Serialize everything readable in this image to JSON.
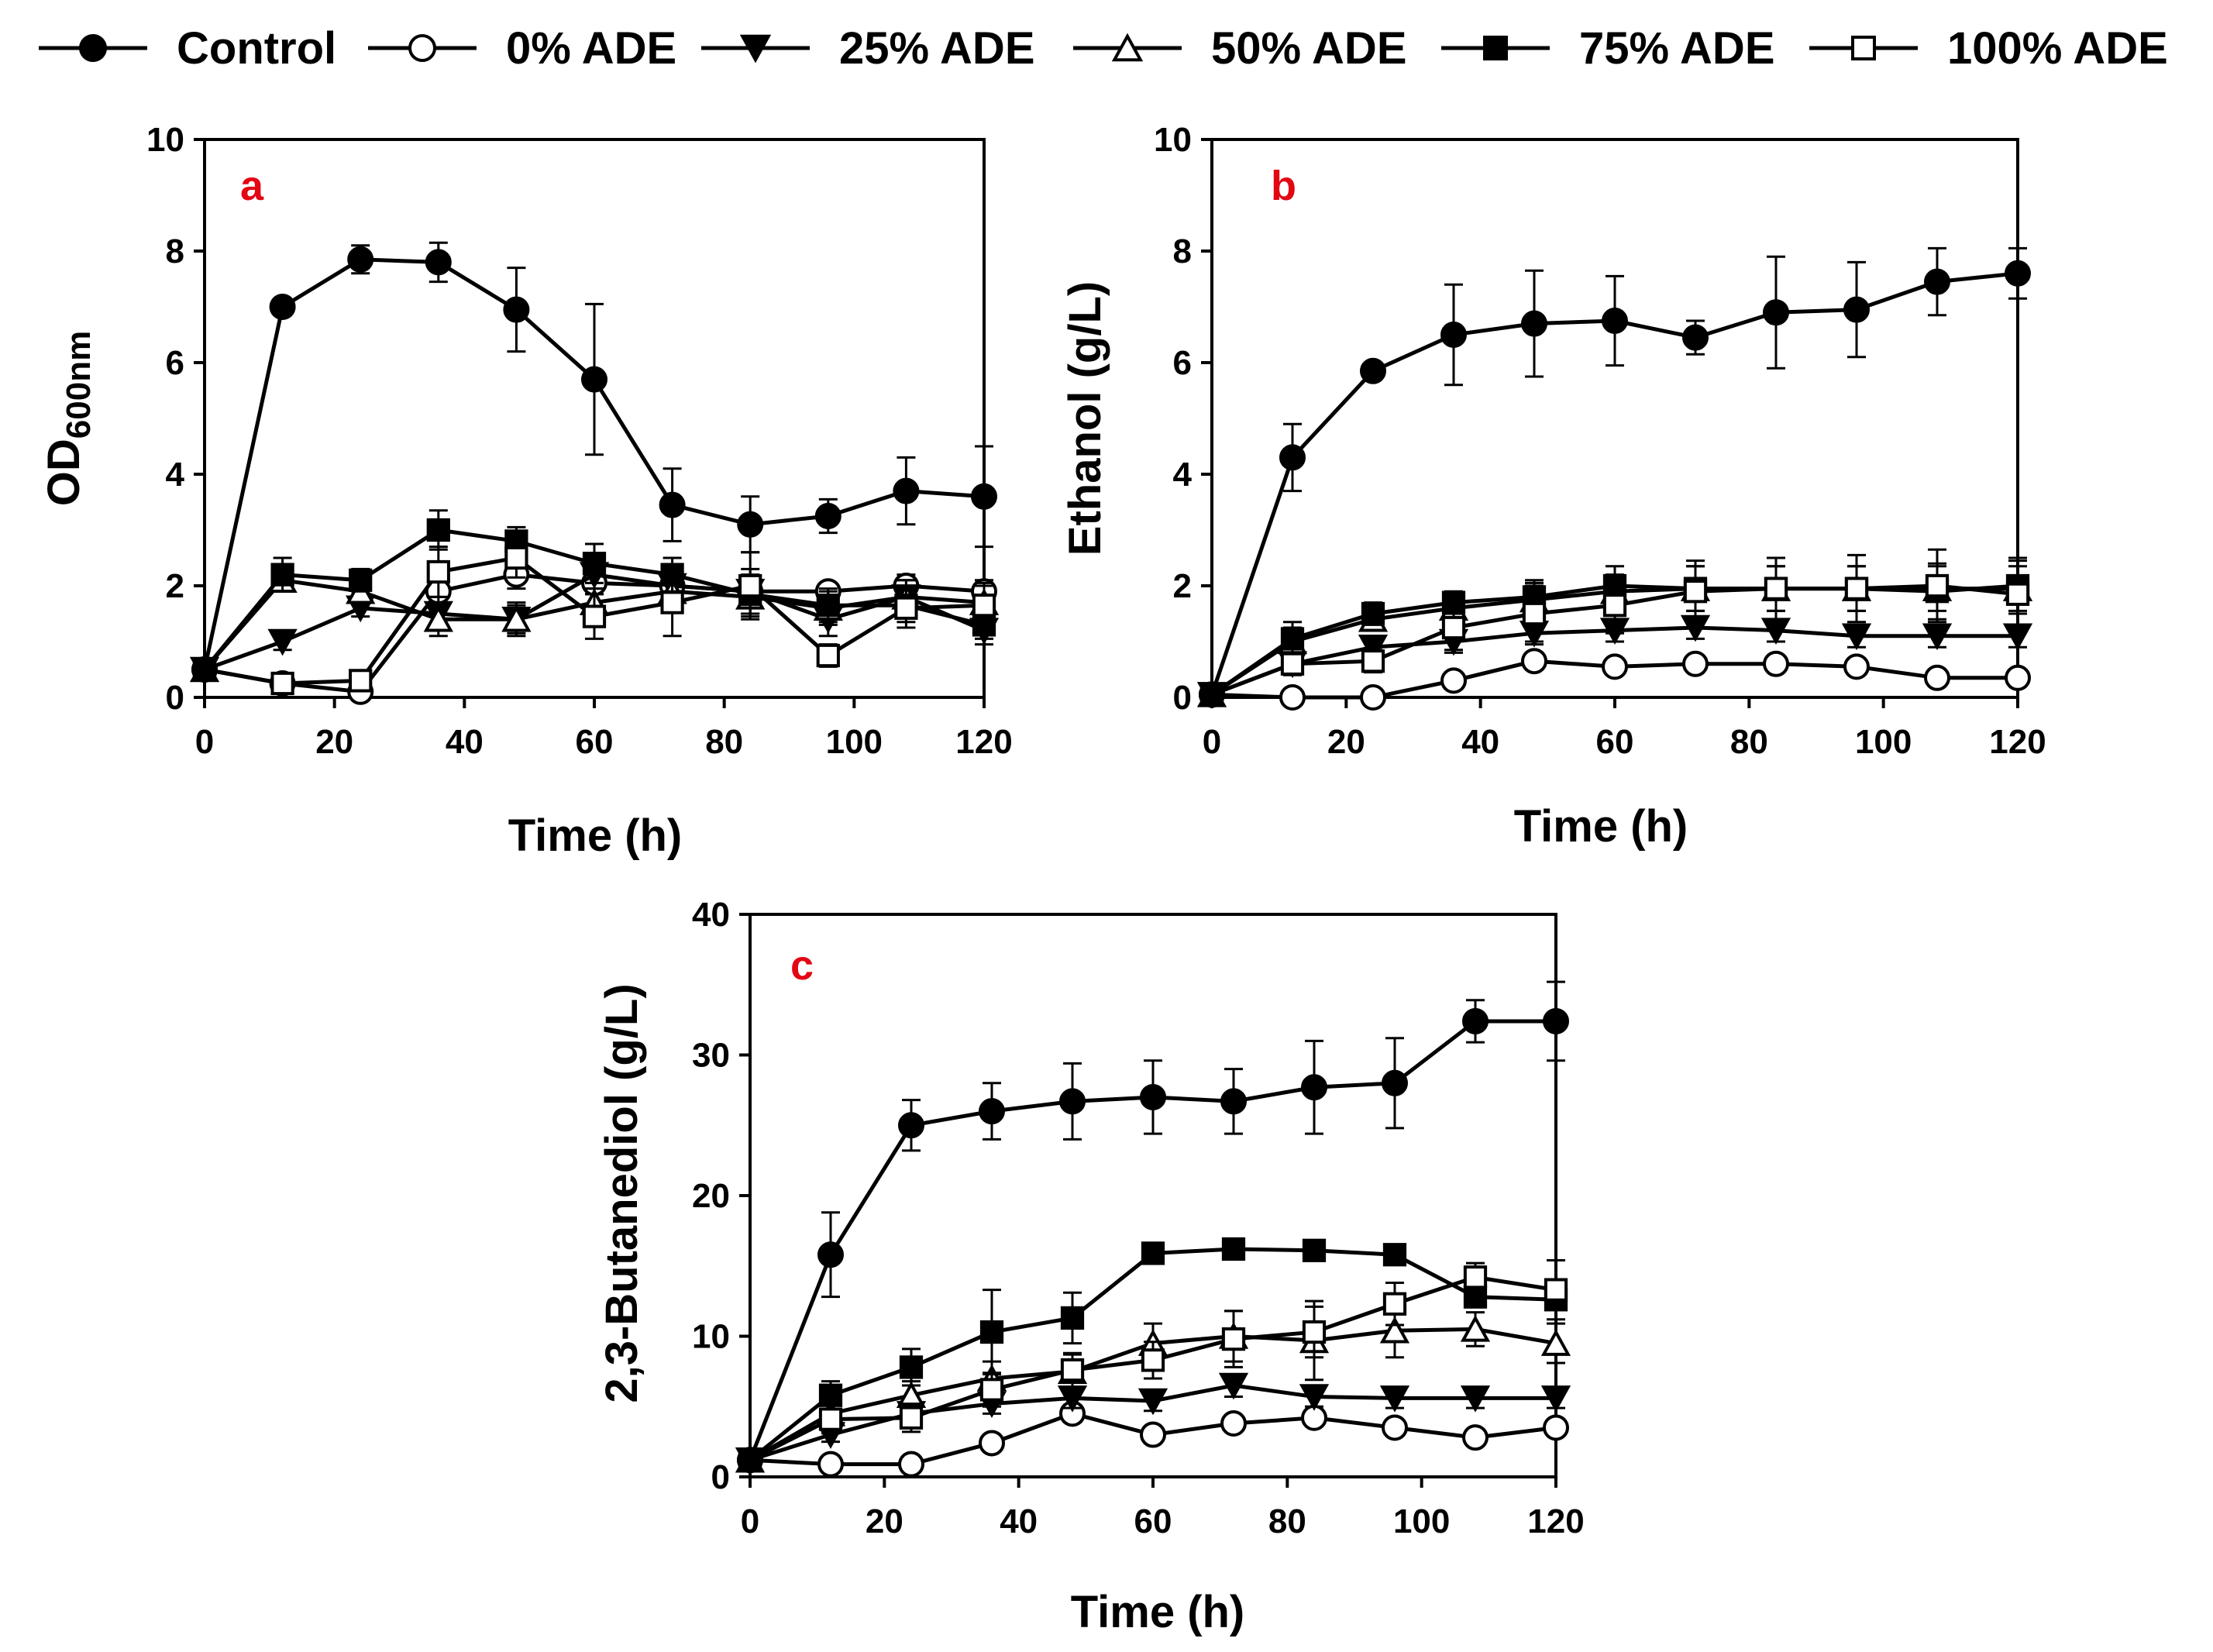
{
  "colors": {
    "axis": "#000000",
    "panel_letter": "#e30613",
    "background": "#ffffff"
  },
  "legend": {
    "items": [
      {
        "label": "Control",
        "marker": "circle-filled"
      },
      {
        "label": "0% ADE",
        "marker": "circle-open"
      },
      {
        "label": "25% ADE",
        "marker": "triangle-down-filled"
      },
      {
        "label": "50% ADE",
        "marker": "triangle-up-open"
      },
      {
        "label": "75% ADE",
        "marker": "square-filled"
      },
      {
        "label": "100% ADE",
        "marker": "square-open"
      }
    ]
  },
  "chart_data": [
    {
      "type": "line",
      "panel": "a",
      "xlabel": "Time (h)",
      "ylabel_main": "OD",
      "ylabel_sub": "600nm",
      "xlim": [
        0,
        120
      ],
      "ylim": [
        0,
        10
      ],
      "xticks": [
        0,
        20,
        40,
        60,
        80,
        100,
        120
      ],
      "yticks": [
        0,
        2,
        4,
        6,
        8,
        10
      ],
      "x": [
        0,
        12,
        24,
        36,
        48,
        60,
        72,
        84,
        96,
        108,
        120
      ],
      "series": [
        {
          "name": "Control",
          "marker": "circle-filled",
          "values": [
            0.5,
            7.0,
            7.85,
            7.8,
            6.95,
            5.7,
            3.45,
            3.1,
            3.25,
            3.7,
            3.6
          ],
          "errors": [
            0,
            0.15,
            0.25,
            0.35,
            0.75,
            1.35,
            0.65,
            0.5,
            0.3,
            0.6,
            0.9
          ]
        },
        {
          "name": "0% ADE",
          "marker": "circle-open",
          "values": [
            0.5,
            0.25,
            0.1,
            1.9,
            2.2,
            2.05,
            2.0,
            1.9,
            1.9,
            2.0,
            1.9
          ],
          "errors": [
            0,
            0,
            0,
            0.3,
            0.25,
            0.2,
            0.2,
            0.2,
            0.15,
            0.2,
            0.2
          ]
        },
        {
          "name": "25% ADE",
          "marker": "triangle-down-filled",
          "values": [
            0.5,
            1.0,
            1.6,
            1.5,
            1.4,
            2.2,
            2.0,
            1.9,
            1.4,
            1.8,
            1.2
          ],
          "errors": [
            0,
            0.15,
            0.15,
            0.3,
            0.25,
            0.25,
            0.2,
            0.4,
            0.3,
            0.3,
            0.25
          ]
        },
        {
          "name": "50% ADE",
          "marker": "triangle-up-open",
          "values": [
            0.5,
            2.1,
            1.9,
            1.4,
            1.4,
            1.7,
            1.9,
            1.8,
            1.6,
            1.8,
            1.7
          ],
          "errors": [
            0,
            0.2,
            0.2,
            0.3,
            0.3,
            0.25,
            0.25,
            0.35,
            0.3,
            0.3,
            0.3
          ]
        },
        {
          "name": "75% ADE",
          "marker": "square-filled",
          "values": [
            0.5,
            2.2,
            2.1,
            3.0,
            2.8,
            2.4,
            2.2,
            1.85,
            1.65,
            1.65,
            1.3
          ],
          "errors": [
            0,
            0.3,
            0.2,
            0.35,
            0.25,
            0.35,
            0.3,
            0.35,
            0.3,
            0.3,
            0.25
          ]
        },
        {
          "name": "100% ADE",
          "marker": "square-open",
          "values": [
            0.5,
            0.25,
            0.3,
            2.25,
            2.5,
            1.45,
            1.7,
            2.0,
            0.75,
            1.6,
            1.65
          ],
          "errors": [
            0,
            0,
            0,
            0.45,
            0.35,
            0.4,
            0.6,
            0.6,
            0.2,
            0.35,
            0.4
          ]
        }
      ]
    },
    {
      "type": "line",
      "panel": "b",
      "xlabel": "Time (h)",
      "ylabel": "Ethanol (g/L)",
      "xlim": [
        0,
        120
      ],
      "ylim": [
        0,
        10
      ],
      "xticks": [
        0,
        20,
        40,
        60,
        80,
        100,
        120
      ],
      "yticks": [
        0,
        2,
        4,
        6,
        8,
        10
      ],
      "x": [
        0,
        12,
        24,
        36,
        48,
        60,
        72,
        84,
        96,
        108,
        120
      ],
      "series": [
        {
          "name": "Control",
          "marker": "circle-filled",
          "values": [
            0.05,
            4.3,
            5.85,
            6.5,
            6.7,
            6.75,
            6.45,
            6.9,
            6.95,
            7.45,
            7.6
          ],
          "errors": [
            0,
            0.6,
            0.15,
            0.9,
            0.95,
            0.8,
            0.3,
            1.0,
            0.85,
            0.6,
            0.45
          ]
        },
        {
          "name": "0% ADE",
          "marker": "circle-open",
          "values": [
            0.05,
            0.0,
            0.0,
            0.3,
            0.65,
            0.55,
            0.6,
            0.6,
            0.55,
            0.35,
            0.35
          ],
          "errors": [
            0,
            0,
            0,
            0.1,
            0.15,
            0.1,
            0.1,
            0.1,
            0.1,
            0.1,
            0.1
          ]
        },
        {
          "name": "25% ADE",
          "marker": "triangle-down-filled",
          "values": [
            0.05,
            0.6,
            0.9,
            1.0,
            1.15,
            1.2,
            1.25,
            1.2,
            1.1,
            1.1,
            1.1
          ],
          "errors": [
            0,
            0.15,
            0.15,
            0.2,
            0.2,
            0.2,
            0.2,
            0.2,
            0.2,
            0.2,
            0.2
          ]
        },
        {
          "name": "50% ADE",
          "marker": "triangle-up-open",
          "values": [
            0.05,
            1.0,
            1.4,
            1.6,
            1.75,
            1.9,
            1.95,
            1.95,
            1.95,
            1.95,
            1.95
          ],
          "errors": [
            0,
            0.25,
            0.2,
            0.25,
            0.3,
            0.3,
            0.4,
            0.4,
            0.4,
            0.4,
            0.4
          ]
        },
        {
          "name": "75% ADE",
          "marker": "square-filled",
          "values": [
            0.05,
            1.05,
            1.5,
            1.7,
            1.8,
            2.0,
            1.95,
            1.95,
            1.95,
            1.9,
            2.0
          ],
          "errors": [
            0,
            0.3,
            0.2,
            0.2,
            0.3,
            0.35,
            0.4,
            0.4,
            0.4,
            0.5,
            0.5
          ]
        },
        {
          "name": "100% ADE",
          "marker": "square-open",
          "values": [
            0.05,
            0.6,
            0.65,
            1.25,
            1.5,
            1.65,
            1.9,
            1.95,
            1.95,
            2.0,
            1.85
          ],
          "errors": [
            0,
            0.2,
            0.2,
            0.4,
            0.5,
            0.5,
            0.55,
            0.55,
            0.6,
            0.65,
            0.6
          ]
        }
      ]
    },
    {
      "type": "line",
      "panel": "c",
      "xlabel": "Time (h)",
      "ylabel": "2,3-Butanediol (g/L)",
      "xlim": [
        0,
        120
      ],
      "ylim": [
        0,
        40
      ],
      "xticks": [
        0,
        20,
        40,
        60,
        80,
        100,
        120
      ],
      "yticks": [
        0,
        10,
        20,
        30,
        40
      ],
      "x": [
        0,
        12,
        24,
        36,
        48,
        60,
        72,
        84,
        96,
        108,
        120
      ],
      "series": [
        {
          "name": "Control",
          "marker": "circle-filled",
          "values": [
            1.2,
            15.8,
            25.0,
            26.0,
            26.7,
            27.0,
            26.7,
            27.7,
            28.0,
            32.4,
            32.4
          ],
          "errors": [
            0,
            3.0,
            1.8,
            2.0,
            2.7,
            2.6,
            2.3,
            3.3,
            3.2,
            1.5,
            2.8
          ]
        },
        {
          "name": "0% ADE",
          "marker": "circle-open",
          "values": [
            1.2,
            0.9,
            0.9,
            2.4,
            4.5,
            3.0,
            3.8,
            4.2,
            3.5,
            2.8,
            3.5
          ],
          "errors": [
            0,
            0.2,
            0.2,
            0.4,
            0.6,
            0.5,
            0.5,
            0.6,
            0.5,
            0.4,
            0.5
          ]
        },
        {
          "name": "25% ADE",
          "marker": "triangle-down-filled",
          "values": [
            1.2,
            3.0,
            4.5,
            5.2,
            5.6,
            5.4,
            6.5,
            5.7,
            5.6,
            5.6,
            5.6
          ],
          "errors": [
            0,
            0.5,
            0.6,
            0.7,
            0.7,
            0.7,
            0.8,
            0.7,
            0.7,
            0.7,
            0.7
          ]
        },
        {
          "name": "50% ADE",
          "marker": "triangle-up-open",
          "values": [
            1.2,
            4.5,
            5.8,
            7.0,
            7.5,
            9.5,
            10.0,
            9.7,
            10.4,
            10.5,
            9.5
          ],
          "errors": [
            0,
            1.0,
            1.0,
            1.2,
            1.2,
            1.4,
            1.8,
            2.8,
            1.9,
            1.2,
            1.4
          ]
        },
        {
          "name": "75% ADE",
          "marker": "square-filled",
          "values": [
            1.2,
            5.8,
            7.8,
            10.3,
            11.3,
            15.9,
            16.2,
            16.1,
            15.8,
            12.8,
            12.6
          ],
          "errors": [
            0,
            1.0,
            1.3,
            3.0,
            1.8,
            0.6,
            0.6,
            0.6,
            0.5,
            0.5,
            0.6
          ]
        },
        {
          "name": "100% ADE",
          "marker": "square-open",
          "values": [
            1.2,
            4.1,
            4.2,
            6.2,
            7.6,
            8.3,
            9.8,
            10.3,
            12.3,
            14.2,
            13.3
          ],
          "errors": [
            0,
            1.0,
            1.0,
            1.2,
            1.2,
            1.3,
            2.0,
            1.8,
            1.5,
            1.0,
            2.1
          ]
        }
      ]
    }
  ]
}
